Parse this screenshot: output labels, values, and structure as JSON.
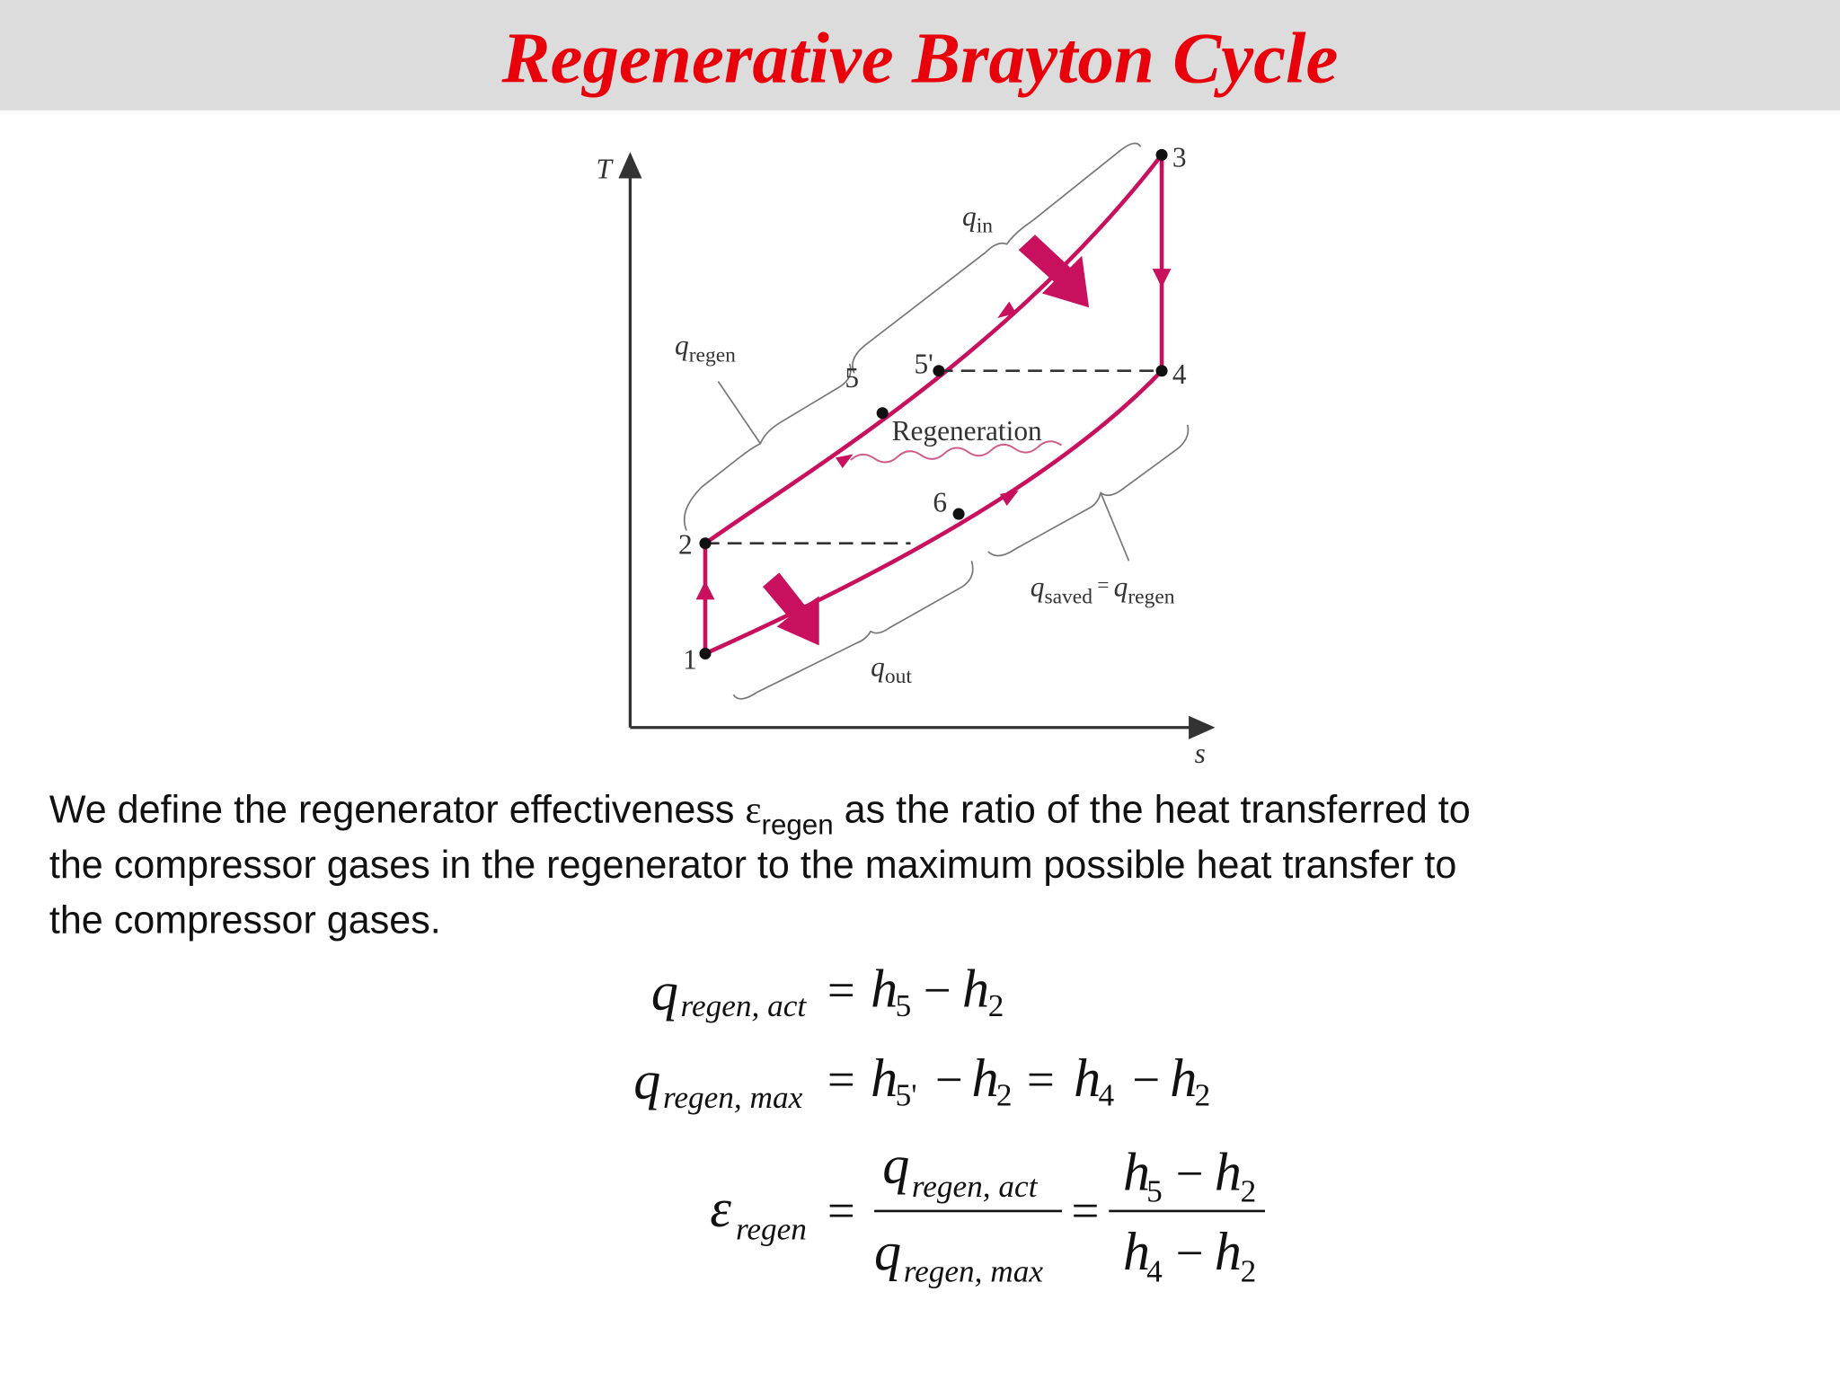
{
  "header": {
    "title": "Regenerative Brayton Cycle"
  },
  "diagram": {
    "axis_y": "T",
    "axis_x": "s",
    "q_in": [
      "q",
      "in"
    ],
    "q_regen": [
      "q",
      "regen"
    ],
    "points": [
      "1",
      "2",
      "3",
      "4",
      "5",
      "5'",
      "6"
    ],
    "regeneration": "Regeneration",
    "q_saved": [
      "q",
      "saved",
      "=",
      "q",
      "regen"
    ],
    "q_out": [
      "q",
      "out"
    ]
  },
  "body": {
    "line1": [
      "We define the regenerator effectiveness ",
      "ε",
      "regen",
      " as the ratio of the heat transferred to"
    ],
    "line2": "the compressor gases in the regenerator to the maximum possible heat transfer to",
    "line3": "the compressor gases."
  },
  "equations": [
    [
      "q",
      "regen, act",
      "=",
      "h",
      "5",
      "−",
      "h",
      "2"
    ],
    [
      "q",
      "regen, max",
      "=",
      "h",
      "5'",
      "−",
      "h",
      "2",
      "=",
      "h",
      "4",
      "−",
      "h",
      "2"
    ],
    [
      "ε",
      "regen",
      "=",
      "q",
      "regen, act",
      "q",
      "regen, max",
      "=",
      "h",
      "5",
      "−",
      "h",
      "2",
      "h",
      "4",
      "−",
      "h",
      "2"
    ]
  ]
}
